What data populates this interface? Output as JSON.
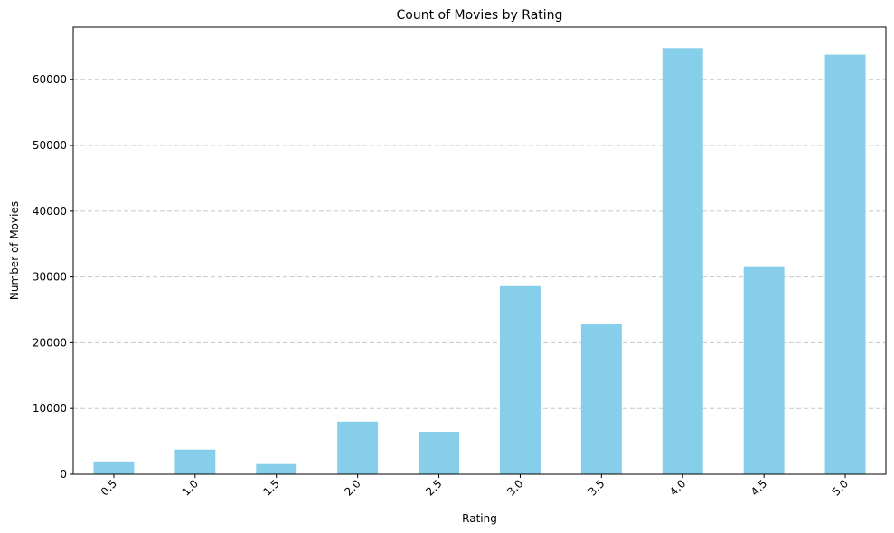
{
  "chart_data": {
    "type": "bar",
    "title": "Count of Movies by Rating",
    "xlabel": "Rating",
    "ylabel": "Number of Movies",
    "categories": [
      "0.5",
      "1.0",
      "1.5",
      "2.0",
      "2.5",
      "3.0",
      "3.5",
      "4.0",
      "4.5",
      "5.0"
    ],
    "values": [
      1950,
      3750,
      1550,
      8000,
      6450,
      28600,
      22800,
      64800,
      31500,
      63800
    ],
    "ylim": [
      0,
      68000
    ],
    "yticks": [
      "0",
      "10000",
      "20000",
      "30000",
      "40000",
      "50000",
      "60000"
    ],
    "grid": "y-dashed",
    "bar_color": "#87CEEB",
    "grid_color": "#c8c8c8"
  }
}
